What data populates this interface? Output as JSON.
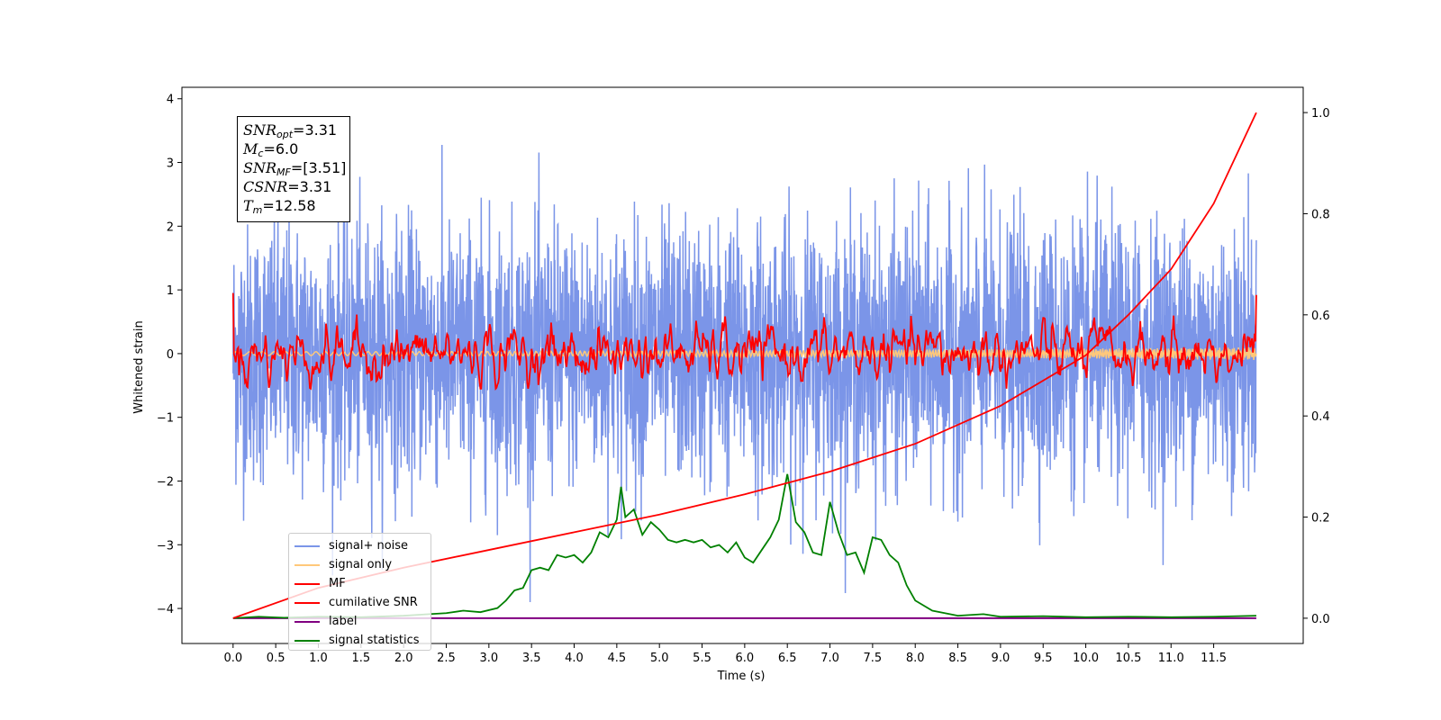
{
  "chart_data": {
    "type": "line",
    "xlabel": "Time (s)",
    "ylabel": "Whitened strain",
    "xlim": [
      -0.6,
      12.55
    ],
    "ylim_left": [
      -4.55,
      4.18
    ],
    "ylim_right": [
      -0.05,
      1.05
    ],
    "x_ticks": [
      "0.0",
      "0.5",
      "1.0",
      "1.5",
      "2.0",
      "2.5",
      "3.0",
      "3.5",
      "4.0",
      "4.5",
      "5.0",
      "5.5",
      "6.0",
      "6.5",
      "7.0",
      "7.5",
      "8.0",
      "8.5",
      "9.0",
      "9.5",
      "10.0",
      "10.5",
      "11.0",
      "11.5"
    ],
    "y_ticks_left": [
      "4",
      "3",
      "2",
      "1",
      "0",
      "−1",
      "−2",
      "−3",
      "−4"
    ],
    "y_ticks_right": [
      "1.0",
      "0.8",
      "0.6",
      "0.4",
      "0.2",
      "0.0"
    ],
    "annotation": {
      "snr_opt": "=3.31",
      "mc": "=6.0",
      "snr_mf": "=[3.51]",
      "csnr": "=3.31",
      "tm": "=12.58"
    },
    "series": [
      {
        "name": "signal+ noise",
        "color": "#7b95e8",
        "axis": "left",
        "style": "dense noise, roughly spanning -2.3 to 2.3 with spikes to ±3.7",
        "sigma": 1.0
      },
      {
        "name": "signal only",
        "color": "#ffc87a",
        "axis": "left",
        "style": "near zero chirp, amplitude ~0.1 growing toward end"
      },
      {
        "name": "MF",
        "color": "#ff0000",
        "axis": "left",
        "style": "oscillating around 0, amplitude about ±0.6 with peaks ~0.9"
      },
      {
        "name": "cumilative SNR",
        "color": "#ff0000",
        "axis": "right",
        "x": [
          0.0,
          1.0,
          2.0,
          3.0,
          4.0,
          5.0,
          6.0,
          7.0,
          8.0,
          9.0,
          10.0,
          10.5,
          11.0,
          11.5,
          12.0
        ],
        "y": [
          0.0,
          0.06,
          0.1,
          0.135,
          0.17,
          0.205,
          0.245,
          0.29,
          0.345,
          0.42,
          0.52,
          0.6,
          0.69,
          0.82,
          1.0
        ]
      },
      {
        "name": "label",
        "color": "#800080",
        "axis": "right",
        "x": [
          0.0,
          12.0
        ],
        "y": [
          0.0,
          0.0
        ]
      },
      {
        "name": "signal statistics",
        "color": "#008000",
        "axis": "right",
        "x": [
          0.0,
          0.3,
          0.6,
          1.0,
          1.5,
          2.0,
          2.3,
          2.5,
          2.7,
          2.9,
          3.1,
          3.2,
          3.3,
          3.4,
          3.5,
          3.6,
          3.7,
          3.8,
          3.9,
          4.0,
          4.1,
          4.2,
          4.3,
          4.4,
          4.5,
          4.55,
          4.6,
          4.7,
          4.8,
          4.9,
          5.0,
          5.1,
          5.2,
          5.3,
          5.4,
          5.5,
          5.6,
          5.7,
          5.8,
          5.9,
          6.0,
          6.1,
          6.2,
          6.3,
          6.4,
          6.5,
          6.6,
          6.7,
          6.8,
          6.9,
          7.0,
          7.1,
          7.2,
          7.3,
          7.4,
          7.5,
          7.6,
          7.7,
          7.8,
          7.9,
          8.0,
          8.2,
          8.5,
          8.8,
          9.0,
          9.5,
          10.0,
          10.5,
          11.0,
          11.5,
          12.0
        ],
        "y": [
          0.0,
          0.003,
          0.001,
          0.003,
          0.002,
          0.005,
          0.008,
          0.01,
          0.015,
          0.012,
          0.02,
          0.035,
          0.055,
          0.06,
          0.095,
          0.1,
          0.095,
          0.125,
          0.12,
          0.125,
          0.11,
          0.13,
          0.17,
          0.16,
          0.195,
          0.26,
          0.2,
          0.215,
          0.165,
          0.19,
          0.175,
          0.155,
          0.15,
          0.155,
          0.15,
          0.155,
          0.14,
          0.145,
          0.13,
          0.15,
          0.12,
          0.11,
          0.135,
          0.16,
          0.195,
          0.285,
          0.19,
          0.17,
          0.13,
          0.125,
          0.23,
          0.17,
          0.125,
          0.13,
          0.09,
          0.16,
          0.155,
          0.125,
          0.11,
          0.065,
          0.035,
          0.015,
          0.005,
          0.008,
          0.003,
          0.004,
          0.002,
          0.003,
          0.002,
          0.003,
          0.005
        ]
      }
    ]
  }
}
